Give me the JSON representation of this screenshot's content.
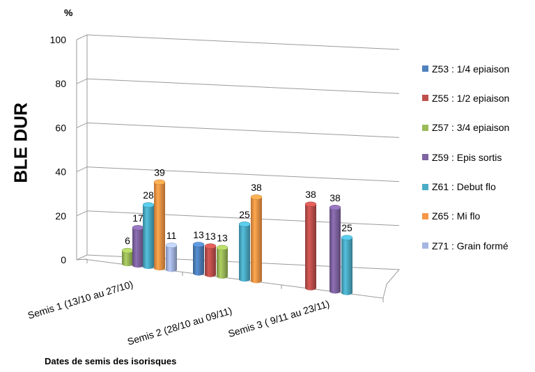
{
  "chart_data": {
    "type": "bar",
    "ylabel": "BLE DUR",
    "y_unit": "%",
    "xlabel": "Dates de semis des isorisques",
    "ylim": [
      0,
      100
    ],
    "yticks": [
      0,
      20,
      40,
      60,
      80,
      100
    ],
    "categories": [
      "Semis 1 (13/10 au 27/10)",
      "Semis 2 (28/10 au 09/11)",
      "Semis 3 ( 9/11 au 23/11)"
    ],
    "legend_position": "right",
    "grid": true,
    "series": [
      {
        "name": "Z53 : 1/4 epiaison",
        "color": "#4F81BD",
        "values": [
          null,
          13,
          null
        ]
      },
      {
        "name": "Z55 : 1/2 epiaison",
        "color": "#C0504D",
        "values": [
          null,
          13,
          38
        ]
      },
      {
        "name": "Z57 : 3/4 epiaison",
        "color": "#9BBB59",
        "values": [
          6,
          13,
          null
        ]
      },
      {
        "name": "Z59 : Epis sortis",
        "color": "#8064A2",
        "values": [
          17,
          null,
          38
        ]
      },
      {
        "name": "Z61 : Debut flo",
        "color": "#4BACC6",
        "values": [
          28,
          25,
          25
        ]
      },
      {
        "name": "Z65 : Mi flo",
        "color": "#F79646",
        "values": [
          39,
          38,
          null
        ]
      },
      {
        "name": "Z71 : Grain formé",
        "color": "#A5B6E0",
        "values": [
          11,
          null,
          null
        ]
      }
    ]
  }
}
